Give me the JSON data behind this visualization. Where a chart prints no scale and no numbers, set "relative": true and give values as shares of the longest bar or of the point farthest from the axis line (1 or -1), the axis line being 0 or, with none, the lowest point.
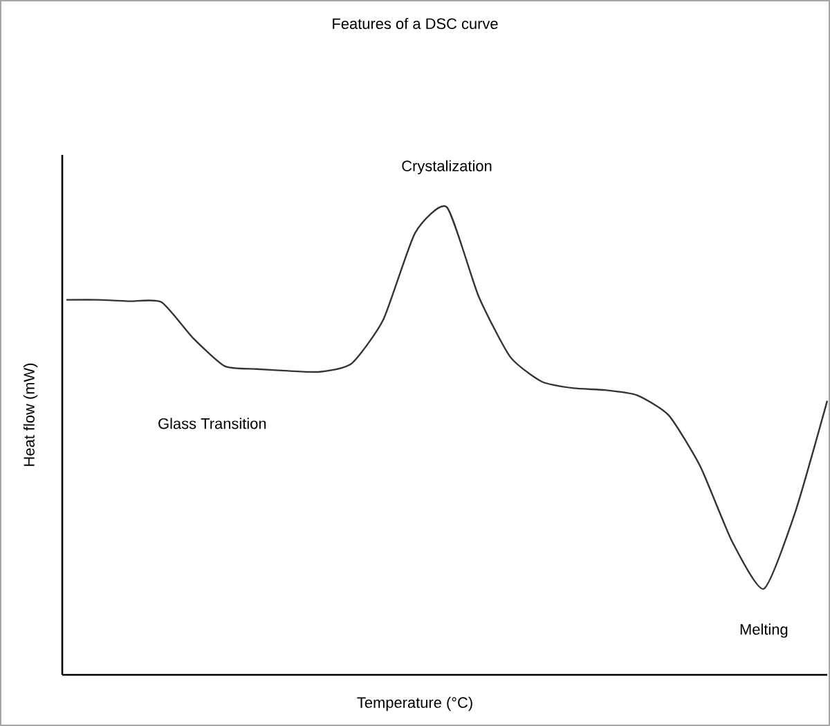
{
  "chart_data": {
    "type": "line",
    "title": "Features of a DSC curve",
    "xlabel": "Temperature (°C)",
    "ylabel": "Heat flow (mW)",
    "relative": true,
    "categories": [
      null,
      null,
      null,
      null,
      null,
      null,
      null,
      null,
      null,
      null,
      null,
      null,
      null,
      null,
      null,
      null,
      null,
      null,
      null,
      null,
      null,
      null,
      null,
      null,
      null
    ],
    "series": [
      {
        "color": "#333333",
        "values": [
          0.802,
          0.802,
          0.799,
          0.797,
          0.72,
          0.66,
          0.654,
          0.65,
          0.648,
          0.666,
          0.76,
          0.945,
          1,
          0.81,
          0.68,
          0.627,
          0.613,
          0.609,
          0.598,
          0.555,
          0.445,
          0.285,
          0.184,
          0.35,
          0.586
        ]
      }
    ],
    "annotations": [
      "Crystalization",
      "Glass Transition",
      "Melting"
    ],
    "marker": "none",
    "line_style": "solid"
  }
}
